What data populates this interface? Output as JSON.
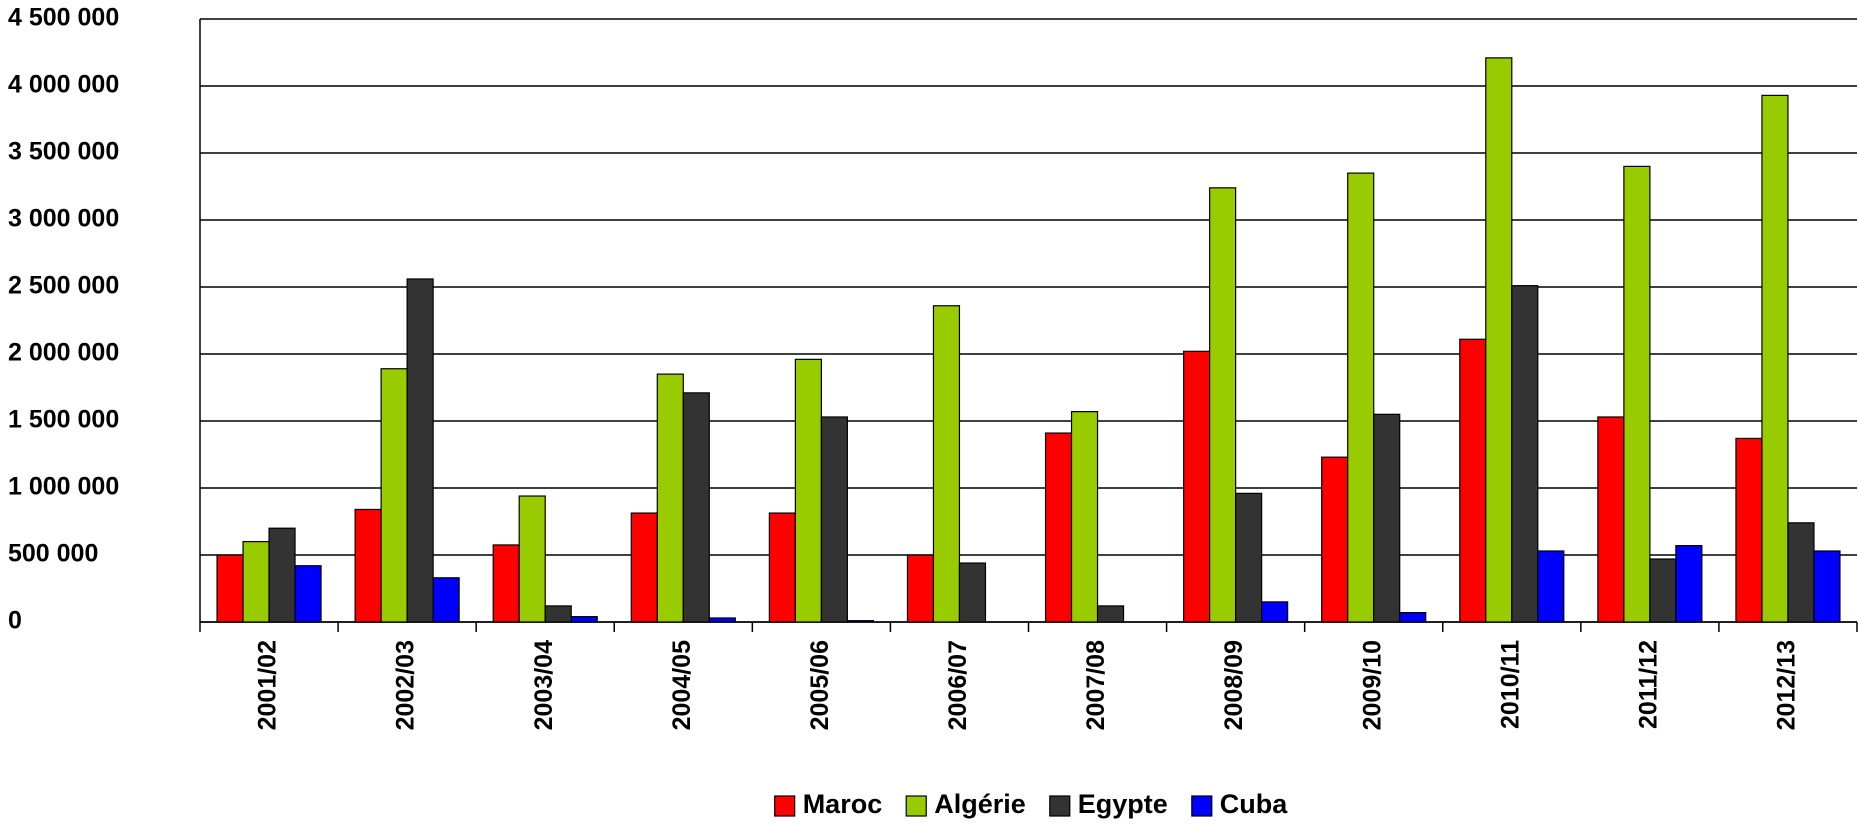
{
  "chart_data": {
    "type": "bar",
    "categories": [
      "2001/02",
      "2002/03",
      "2003/04",
      "2004/05",
      "2005/06",
      "2006/07",
      "2007/08",
      "2008/09",
      "2009/10",
      "2010/11",
      "2011/12",
      "2012/13"
    ],
    "series": [
      {
        "name": "Maroc",
        "color": "#ff0000",
        "values": [
          500000,
          840000,
          575000,
          813000,
          813000,
          500000,
          1410000,
          2020000,
          1230000,
          2110000,
          1530000,
          1370000
        ]
      },
      {
        "name": "Algérie",
        "color": "#99cc00",
        "values": [
          600000,
          1890000,
          940000,
          1850000,
          1960000,
          2360000,
          1570000,
          3240000,
          3350000,
          4210000,
          3400000,
          3930000
        ]
      },
      {
        "name": "Egypte",
        "color": "#333333",
        "values": [
          700000,
          2560000,
          120000,
          1710000,
          1530000,
          440000,
          120000,
          960000,
          1550000,
          2510000,
          470000,
          740000
        ]
      },
      {
        "name": "Cuba",
        "color": "#0000ff",
        "values": [
          420000,
          330000,
          40000,
          30000,
          10000,
          0,
          0,
          150000,
          70000,
          530000,
          570000,
          530000
        ]
      }
    ],
    "ylim": [
      0,
      4500000
    ],
    "yticks": [
      0,
      {
        "value": 500000,
        "label": "500 000"
      },
      {
        "value": 1000000,
        "label": "1 000 000"
      },
      {
        "value": 1500000,
        "label": "1 500 000"
      },
      {
        "value": 2000000,
        "label": "2 000 000"
      },
      {
        "value": 2500000,
        "label": "2 500 000"
      },
      {
        "value": 3000000,
        "label": "3 000 000"
      },
      {
        "value": 3500000,
        "label": "3 500 000"
      },
      {
        "value": 4000000,
        "label": "4 000 000"
      },
      {
        "value": 4500000,
        "label": "4 500 000"
      }
    ],
    "grid": true,
    "legend": "bottom"
  }
}
